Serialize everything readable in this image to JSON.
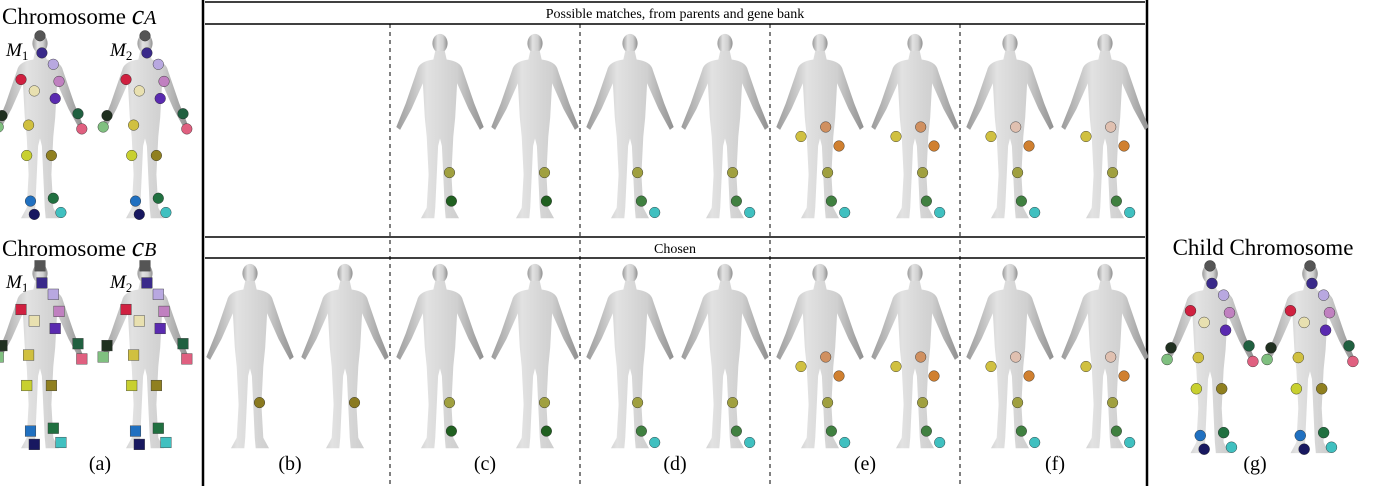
{
  "left": {
    "top": {
      "label": "Chromosome",
      "symbol": "c",
      "subscript": "A",
      "models": [
        {
          "symbol": "M",
          "subscript": "1"
        },
        {
          "symbol": "M",
          "subscript": "2"
        }
      ]
    },
    "bottom": {
      "label": "Chromosome",
      "symbol": "c",
      "subscript": "B",
      "models": [
        {
          "symbol": "M",
          "subscript": "1"
        },
        {
          "symbol": "M",
          "subscript": "2"
        }
      ]
    }
  },
  "middle": {
    "top_header": "Possible matches, from parents and gene bank",
    "bottom_header": "Chosen"
  },
  "right": {
    "label": "Child Chromosome"
  },
  "captions": [
    "(a)",
    "(b)",
    "(c)",
    "(d)",
    "(e)",
    "(f)",
    "(g)"
  ]
}
